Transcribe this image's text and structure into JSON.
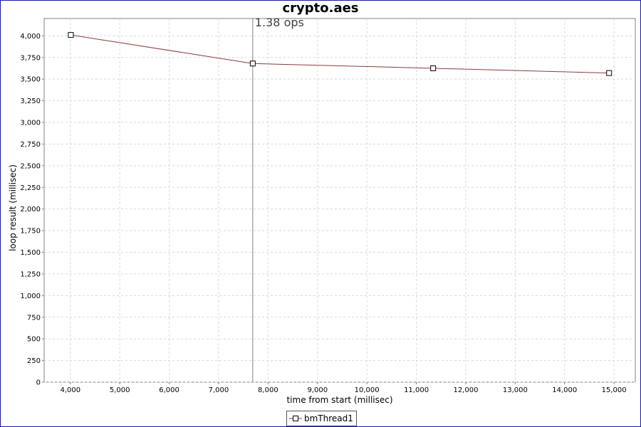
{
  "chart_data": {
    "type": "line",
    "title": "crypto.aes",
    "xlabel": "time from start (millisec)",
    "ylabel": "loop result (millisec)",
    "xlim": [
      3470,
      15430
    ],
    "ylim": [
      0,
      4200
    ],
    "x_ticks": [
      4000,
      5000,
      6000,
      7000,
      8000,
      9000,
      10000,
      11000,
      12000,
      13000,
      14000,
      15000
    ],
    "x_tick_labels": [
      "4,000",
      "5,000",
      "6,000",
      "7,000",
      "8,000",
      "9,000",
      "10,000",
      "11,000",
      "12,000",
      "13,000",
      "14,000",
      "15,000"
    ],
    "y_ticks": [
      0,
      250,
      500,
      750,
      1000,
      1250,
      1500,
      1750,
      2000,
      2250,
      2500,
      2750,
      3000,
      3250,
      3500,
      3750,
      4000
    ],
    "y_tick_labels": [
      "0",
      "250",
      "500",
      "750",
      "1,000",
      "1,250",
      "1,500",
      "1,750",
      "2,000",
      "2,250",
      "2,500",
      "2,750",
      "3,000",
      "3,250",
      "3,500",
      "3,750",
      "4,000"
    ],
    "grid": true,
    "legend_position": "bottom-center",
    "series": [
      {
        "name": "bmThread1",
        "color": "#8b3a3a",
        "x": [
          4010,
          7690,
          11340,
          14900
        ],
        "y": [
          4010,
          3680,
          3625,
          3570
        ]
      }
    ],
    "marker_line": {
      "x": 7690,
      "label": "1.38 ops",
      "color": "#808080"
    }
  }
}
